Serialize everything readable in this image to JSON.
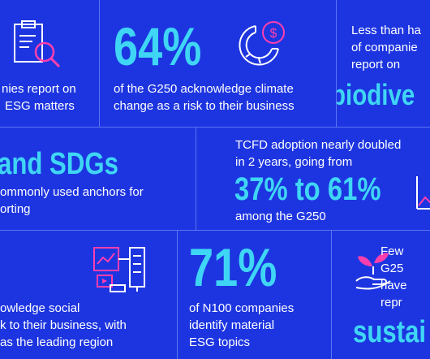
{
  "tiles": {
    "esg_report": {
      "line1": "nies report on",
      "line2": "ESG matters"
    },
    "climate_risk": {
      "stat": "64%",
      "line1": "of the G250 acknowledge climate",
      "line2": "change as a risk to their business"
    },
    "biodiversity": {
      "line1": "Less than ha",
      "line2": "of companie",
      "line3": "report on",
      "stat": "biodive"
    },
    "sdgs": {
      "stat": "and SDGs",
      "line1": "ommonly used anchors for",
      "line2": "orting"
    },
    "tcfd": {
      "line1": "TCFD adoption nearly doubled",
      "line2": "in 2 years, going from",
      "stat": "37% to 61%",
      "line3": "among the G250"
    },
    "social_risk": {
      "line1": "owledge social",
      "line2": "k to their business, with",
      "line3": "as the leading region"
    },
    "material_esg": {
      "stat": "71%",
      "line1": "of N100 companies",
      "line2": "identify material",
      "line3": "ESG topics"
    },
    "sustainability": {
      "line1": "Few",
      "line2": "G25",
      "line3": "have",
      "line4": "repr",
      "stat": "sustai"
    }
  },
  "colors": {
    "background": "#1d35e0",
    "accent_cyan": "#3fd6f5",
    "accent_pink": "#ff3fae",
    "divider": "#5c75f2"
  },
  "icons": [
    "clipboard-magnifier-icon",
    "pie-chart-dollar-icon",
    "chart-arrow-icon",
    "computer-network-icon",
    "plant-hand-icon"
  ]
}
